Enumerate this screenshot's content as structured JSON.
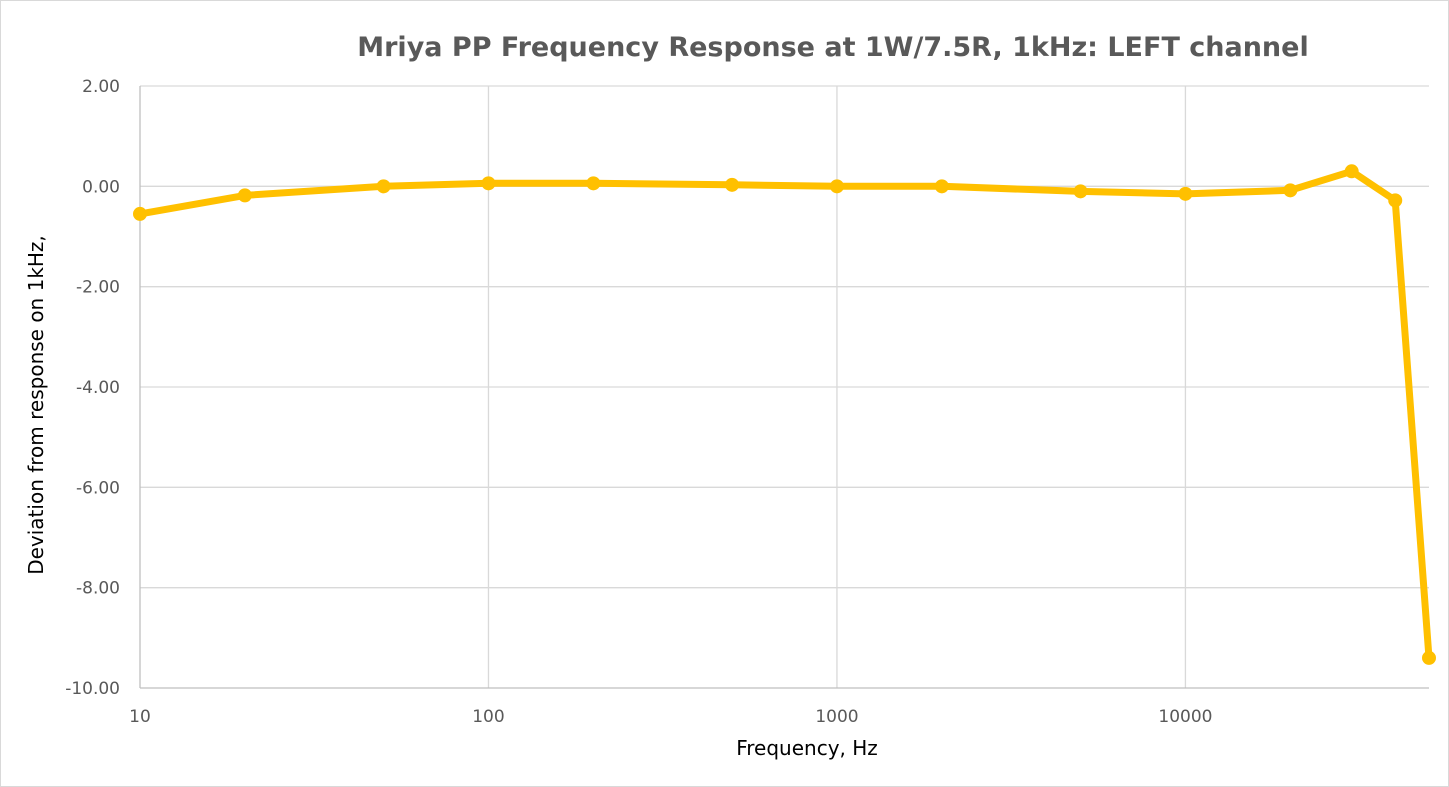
{
  "chart_data": {
    "type": "line",
    "title": "Mriya PP Frequency Response at 1W/7.5R, 1kHz: LEFT channel",
    "xlabel": "Frequency, Hz",
    "ylabel": "Deviation from response on 1kHz,",
    "x_scale": "log",
    "xlim": [
      10,
      50000
    ],
    "ylim": [
      -10,
      2
    ],
    "x_ticks": [
      10,
      100,
      1000,
      10000
    ],
    "x_tick_labels": [
      "10",
      "100",
      "1000",
      "10000"
    ],
    "y_ticks": [
      2,
      0,
      -2,
      -4,
      -6,
      -8,
      -10
    ],
    "y_tick_labels": [
      "2.00",
      "0.00",
      "-2.00",
      "-4.00",
      "-6.00",
      "-8.00",
      "-10.00"
    ],
    "grid": true,
    "legend": "none",
    "series": [
      {
        "color": "#FFC000",
        "x": [
          10,
          20,
          50,
          100,
          200,
          500,
          1000,
          2000,
          5000,
          10000,
          20000,
          30000,
          40000,
          50000
        ],
        "y": [
          -0.55,
          -0.18,
          0.0,
          0.06,
          0.06,
          0.03,
          0.0,
          0.0,
          -0.1,
          -0.15,
          -0.08,
          0.3,
          -0.28,
          -9.4
        ]
      }
    ]
  }
}
